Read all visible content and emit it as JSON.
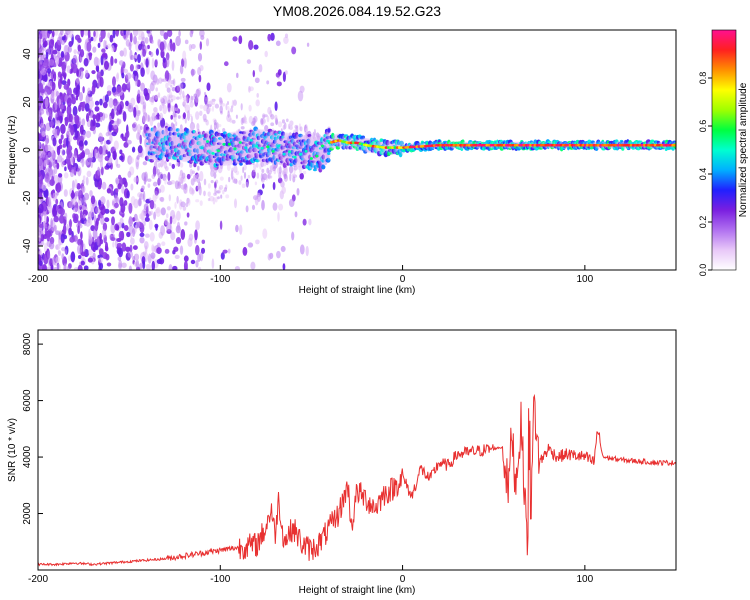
{
  "chart_data": [
    {
      "type": "heatmap",
      "title": "YM08.2026.084.19.52.G23",
      "xlabel": "Height of straight line (km)",
      "ylabel": "Frequency (Hz)",
      "xlim": [
        -200,
        150
      ],
      "ylim": [
        -50,
        50
      ],
      "x_ticks": [
        -200,
        -100,
        0,
        100
      ],
      "y_ticks": [
        -40,
        -20,
        0,
        20,
        40
      ],
      "colorbar": {
        "label": "Normalized spectral amplitude",
        "range": [
          0,
          1
        ],
        "ticks": [
          0.0,
          0.2,
          0.4,
          0.6,
          0.8
        ],
        "tick_labels": [
          "0.0",
          "0.2",
          "0.4",
          "0.6",
          "0.8"
        ],
        "colors": [
          "#ffffff",
          "#e8c8f8",
          "#b070f0",
          "#7a1fe0",
          "#2020ff",
          "#00b0ff",
          "#00ffd0",
          "#00ff40",
          "#a0ff00",
          "#ffff00",
          "#ff9000",
          "#ff2020",
          "#ff1090"
        ]
      },
      "signal_trace": [
        [
          -140,
          2
        ],
        [
          -130,
          3
        ],
        [
          -120,
          2
        ],
        [
          -110,
          1
        ],
        [
          -100,
          0
        ],
        [
          -90,
          1
        ],
        [
          -80,
          2
        ],
        [
          -70,
          1
        ],
        [
          -60,
          0
        ],
        [
          -50,
          -1
        ],
        [
          -45,
          -2
        ],
        [
          -40,
          3
        ],
        [
          -35,
          4
        ],
        [
          -30,
          3
        ],
        [
          -25,
          3
        ],
        [
          -20,
          2
        ],
        [
          -10,
          1
        ],
        [
          0,
          1
        ],
        [
          20,
          2
        ],
        [
          40,
          2
        ],
        [
          60,
          2
        ],
        [
          80,
          2
        ],
        [
          100,
          2
        ],
        [
          120,
          2
        ],
        [
          150,
          2
        ]
      ]
    },
    {
      "type": "line",
      "xlabel": "Height of straight line (km)",
      "ylabel": "SNR (10 * v/v)",
      "xlim": [
        -200,
        150
      ],
      "ylim": [
        0,
        8500
      ],
      "x_ticks": [
        -200,
        -100,
        0,
        100
      ],
      "y_ticks": [
        2000,
        4000,
        6000,
        8000
      ],
      "series": [
        {
          "name": "SNR",
          "color": "#e83030",
          "x": [
            -200,
            -190,
            -180,
            -170,
            -160,
            -150,
            -140,
            -130,
            -120,
            -110,
            -100,
            -90,
            -80,
            -75,
            -72,
            -70,
            -68,
            -65,
            -60,
            -55,
            -50,
            -45,
            -40,
            -35,
            -30,
            -28,
            -25,
            -20,
            -15,
            -10,
            -5,
            0,
            5,
            10,
            15,
            20,
            25,
            30,
            40,
            50,
            55,
            58,
            60,
            62,
            65,
            68,
            70,
            72,
            75,
            80,
            85,
            90,
            100,
            105,
            107,
            110,
            120,
            130,
            140,
            150
          ],
          "y": [
            200,
            200,
            250,
            200,
            250,
            300,
            350,
            400,
            500,
            600,
            700,
            800,
            900,
            1500,
            2200,
            1200,
            2500,
            1000,
            1500,
            900,
            700,
            1000,
            1500,
            2000,
            3000,
            1500,
            2800,
            2500,
            2200,
            2700,
            2900,
            3300,
            2600,
            3600,
            3200,
            3800,
            3700,
            4100,
            4200,
            4300,
            4350,
            2800,
            5000,
            3000,
            5200,
            1500,
            300,
            6000,
            3800,
            4300,
            4000,
            4100,
            4000,
            3800,
            5000,
            4000,
            3900,
            3850,
            3800,
            3800
          ]
        }
      ]
    }
  ]
}
